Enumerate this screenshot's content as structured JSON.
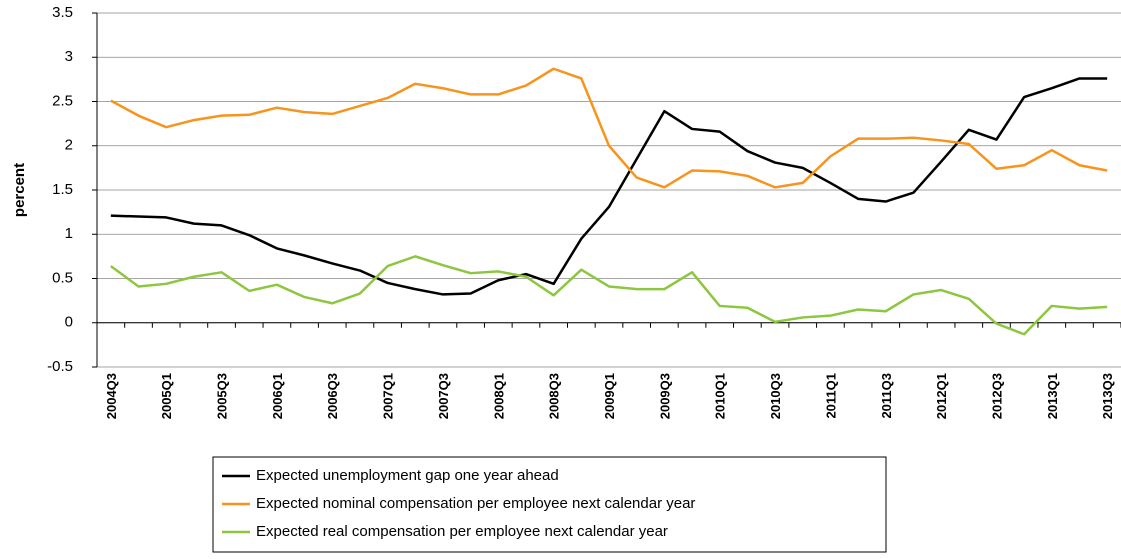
{
  "chart_data": {
    "type": "line",
    "y_label": "percent",
    "categories": [
      "2004Q3",
      null,
      "2005Q1",
      null,
      "2005Q3",
      null,
      "2006Q1",
      null,
      "2006Q3",
      null,
      "2007Q1",
      null,
      "2007Q3",
      null,
      "2008Q1",
      null,
      "2008Q3",
      null,
      "2009Q1",
      null,
      "2009Q3",
      null,
      "2010Q1",
      null,
      "2010Q3",
      null,
      "2011Q1",
      null,
      "2011Q3",
      null,
      "2012Q1",
      null,
      "2012Q3",
      null,
      "2013Q1",
      null,
      "2013Q3"
    ],
    "series": [
      {
        "name": "Expected unemployment gap one year ahead",
        "color": "#000000",
        "values": [
          1.21,
          1.2,
          1.19,
          1.12,
          1.1,
          0.99,
          0.84,
          0.76,
          0.67,
          0.59,
          0.45,
          0.38,
          0.32,
          0.33,
          0.48,
          0.55,
          0.44,
          0.95,
          1.31,
          1.85,
          2.39,
          2.19,
          2.16,
          1.94,
          1.81,
          1.75,
          1.58,
          1.4,
          1.37,
          1.47,
          1.82,
          2.18,
          2.07,
          2.55,
          2.65,
          2.76,
          2.76
        ]
      },
      {
        "name": "Expected nominal compensation per employee next calendar year",
        "color": "#f7941d",
        "values": [
          2.51,
          2.34,
          2.21,
          2.29,
          2.34,
          2.35,
          2.43,
          2.38,
          2.36,
          2.45,
          2.54,
          2.7,
          2.65,
          2.58,
          2.58,
          2.68,
          2.87,
          2.76,
          2.0,
          1.64,
          1.53,
          1.72,
          1.71,
          1.66,
          1.53,
          1.58,
          1.88,
          2.08,
          2.08,
          2.09,
          2.06,
          2.02,
          1.74,
          1.78,
          1.95,
          1.78,
          1.72
        ]
      },
      {
        "name": "Expected real compensation per employee next calendar year",
        "color": "#8dc63f",
        "values": [
          0.64,
          0.41,
          0.44,
          0.52,
          0.57,
          0.36,
          0.43,
          0.29,
          0.22,
          0.33,
          0.64,
          0.75,
          0.65,
          0.56,
          0.58,
          0.52,
          0.31,
          0.6,
          0.41,
          0.38,
          0.38,
          0.57,
          0.19,
          0.17,
          0.01,
          0.06,
          0.08,
          0.15,
          0.13,
          0.32,
          0.37,
          0.27,
          -0.01,
          -0.13,
          0.19,
          0.16,
          0.18
        ]
      }
    ],
    "ylim": [
      -0.5,
      3.5
    ],
    "yticks": [
      -0.5,
      0,
      0.5,
      1,
      1.5,
      2,
      2.5,
      3,
      3.5
    ],
    "grid": true
  }
}
